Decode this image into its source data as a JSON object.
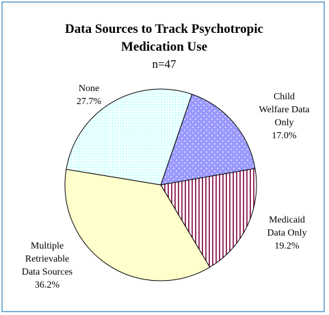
{
  "chart_data": {
    "type": "pie",
    "title": "Data Sources to Track Psychotropic Medication Use",
    "subtitle": "n=47",
    "categories": [
      "Child Welfare Data Only",
      "Medicaid Data Only",
      "Multiple Retrievable Data Sources",
      "None"
    ],
    "values": [
      17.0,
      19.2,
      36.2,
      27.7
    ],
    "value_labels": [
      "17.0%",
      "19.2%",
      "36.2%",
      "27.7%"
    ],
    "colors": [
      "#9999ff",
      "#993366",
      "#ffffcc",
      "#ccffff"
    ],
    "patterns": [
      "dots",
      "vertical",
      "none",
      "grid"
    ],
    "startangle": 19
  }
}
